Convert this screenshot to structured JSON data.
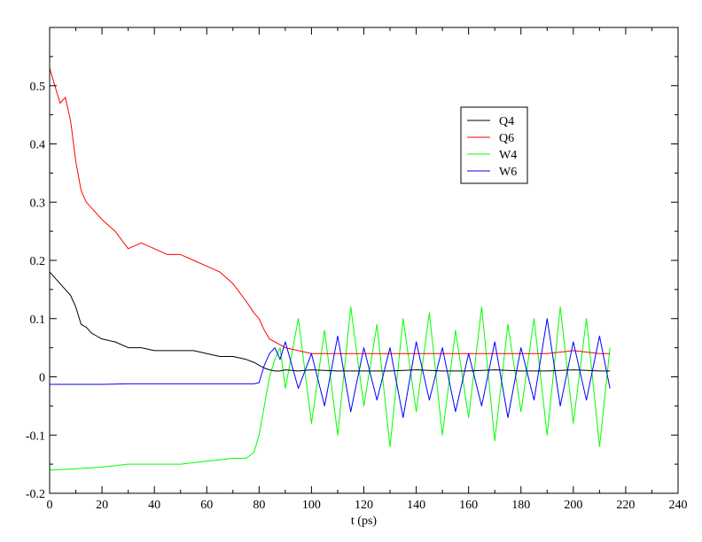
{
  "chart_data": {
    "type": "line",
    "title": "",
    "xlabel": "t (ps)",
    "ylabel": "",
    "xlim": [
      0,
      240
    ],
    "ylim": [
      -0.2,
      0.6
    ],
    "x_ticks": [
      0,
      20,
      40,
      60,
      80,
      100,
      120,
      140,
      160,
      180,
      200,
      220,
      240
    ],
    "x_tick_labels": [
      "0",
      "20",
      "40",
      "60",
      "80",
      "100",
      "120",
      "140",
      "160",
      "180",
      "200",
      "220",
      "240"
    ],
    "y_ticks": [
      -0.2,
      -0.1,
      0,
      0.1,
      0.2,
      0.3,
      0.4,
      0.5
    ],
    "y_tick_labels": [
      "-0.2",
      "-0.1",
      "0",
      "0.1",
      "0.2",
      "0.3",
      "0.4",
      "0.5"
    ],
    "grid": false,
    "legend_position": "top-right",
    "series": [
      {
        "name": "Q4",
        "color": "#000000",
        "x": [
          0,
          2,
          4,
          6,
          8,
          10,
          12,
          14,
          16,
          18,
          20,
          25,
          30,
          35,
          40,
          45,
          50,
          55,
          60,
          65,
          70,
          75,
          78,
          80,
          82,
          84,
          86,
          88,
          90,
          95,
          100,
          110,
          120,
          130,
          140,
          150,
          160,
          170,
          180,
          190,
          200,
          210,
          214
        ],
        "y": [
          0.18,
          0.17,
          0.16,
          0.15,
          0.14,
          0.12,
          0.09,
          0.085,
          0.075,
          0.07,
          0.065,
          0.06,
          0.05,
          0.05,
          0.045,
          0.045,
          0.045,
          0.045,
          0.04,
          0.035,
          0.035,
          0.03,
          0.025,
          0.02,
          0.015,
          0.012,
          0.01,
          0.01,
          0.012,
          0.01,
          0.012,
          0.01,
          0.01,
          0.01,
          0.012,
          0.01,
          0.01,
          0.012,
          0.01,
          0.01,
          0.012,
          0.01,
          0.01
        ]
      },
      {
        "name": "Q6",
        "color": "#ff0000",
        "x": [
          0,
          2,
          4,
          6,
          8,
          10,
          12,
          14,
          16,
          18,
          20,
          25,
          30,
          35,
          40,
          45,
          50,
          55,
          60,
          65,
          70,
          75,
          78,
          80,
          82,
          84,
          86,
          88,
          90,
          95,
          100,
          110,
          120,
          130,
          140,
          150,
          160,
          170,
          180,
          190,
          200,
          210,
          214
        ],
        "y": [
          0.53,
          0.5,
          0.47,
          0.48,
          0.44,
          0.37,
          0.32,
          0.3,
          0.29,
          0.28,
          0.27,
          0.25,
          0.22,
          0.23,
          0.22,
          0.21,
          0.21,
          0.2,
          0.19,
          0.18,
          0.16,
          0.13,
          0.11,
          0.1,
          0.08,
          0.065,
          0.06,
          0.055,
          0.05,
          0.045,
          0.04,
          0.04,
          0.04,
          0.04,
          0.04,
          0.04,
          0.04,
          0.04,
          0.04,
          0.04,
          0.045,
          0.04,
          0.04
        ]
      },
      {
        "name": "W4",
        "color": "#00ff00",
        "x": [
          0,
          10,
          20,
          30,
          40,
          50,
          60,
          70,
          75,
          78,
          80,
          82,
          84,
          86,
          88,
          90,
          95,
          100,
          105,
          110,
          115,
          120,
          125,
          130,
          135,
          140,
          145,
          150,
          155,
          160,
          165,
          170,
          175,
          180,
          185,
          190,
          195,
          200,
          205,
          210,
          214
        ],
        "y": [
          -0.16,
          -0.158,
          -0.155,
          -0.15,
          -0.15,
          -0.15,
          -0.145,
          -0.14,
          -0.14,
          -0.13,
          -0.1,
          -0.05,
          0.0,
          0.03,
          0.05,
          -0.02,
          0.1,
          -0.08,
          0.08,
          -0.1,
          0.12,
          -0.05,
          0.09,
          -0.12,
          0.1,
          -0.06,
          0.11,
          -0.1,
          0.08,
          -0.07,
          0.12,
          -0.11,
          0.09,
          -0.06,
          0.1,
          -0.1,
          0.12,
          -0.08,
          0.1,
          -0.12,
          0.05
        ]
      },
      {
        "name": "W6",
        "color": "#0000ff",
        "x": [
          0,
          10,
          20,
          30,
          40,
          50,
          60,
          70,
          78,
          80,
          82,
          84,
          86,
          88,
          90,
          95,
          100,
          105,
          110,
          115,
          120,
          125,
          130,
          135,
          140,
          145,
          150,
          155,
          160,
          165,
          170,
          175,
          180,
          185,
          190,
          195,
          200,
          205,
          210,
          214
        ],
        "y": [
          -0.013,
          -0.013,
          -0.013,
          -0.012,
          -0.012,
          -0.012,
          -0.012,
          -0.012,
          -0.012,
          -0.01,
          0.02,
          0.04,
          0.05,
          0.03,
          0.06,
          -0.02,
          0.04,
          -0.05,
          0.07,
          -0.06,
          0.05,
          -0.04,
          0.05,
          -0.07,
          0.06,
          -0.04,
          0.05,
          -0.06,
          0.04,
          -0.05,
          0.06,
          -0.07,
          0.05,
          -0.04,
          0.1,
          -0.05,
          0.06,
          -0.04,
          0.07,
          -0.02
        ]
      }
    ]
  }
}
